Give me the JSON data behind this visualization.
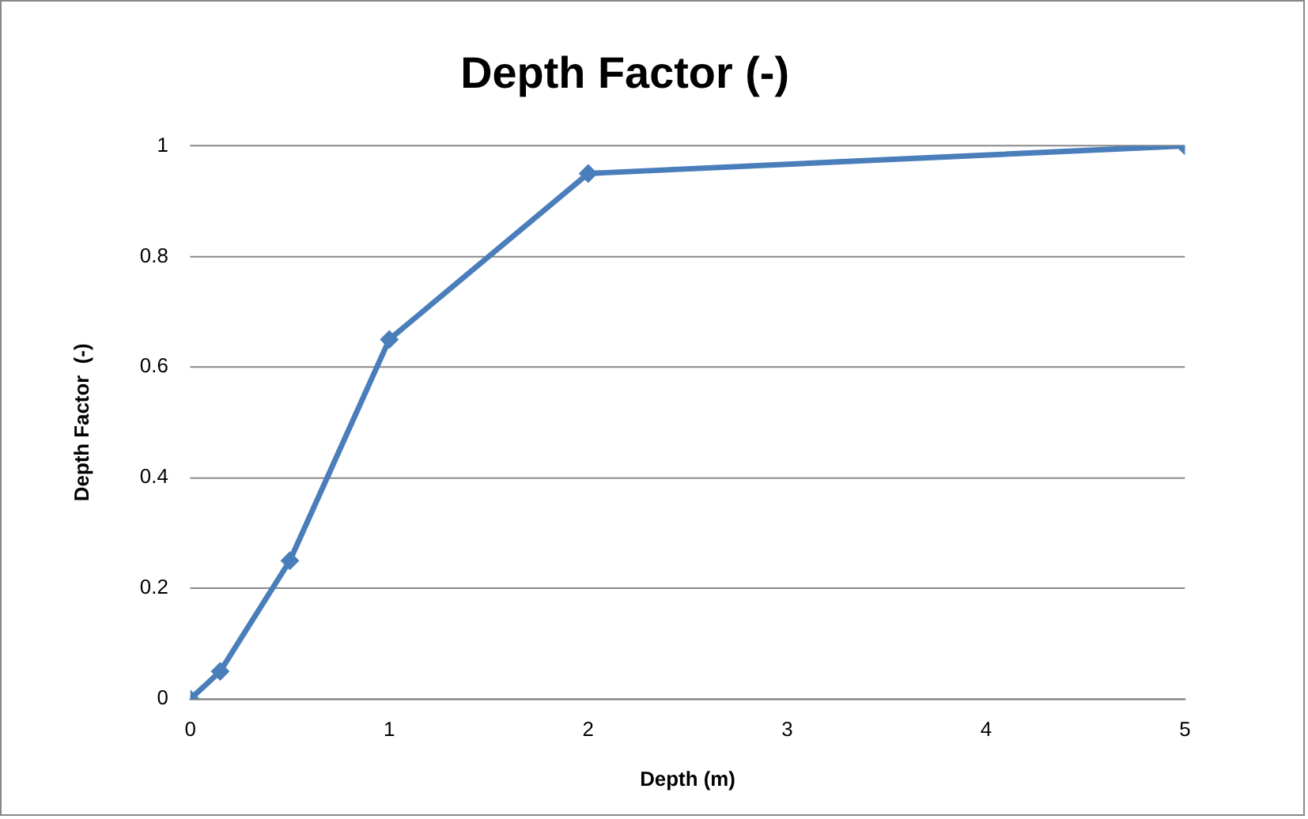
{
  "chart_data": {
    "type": "line",
    "title": "Depth Factor (-)",
    "xlabel": "Depth (m)",
    "ylabel": "Depth Factor  (-)",
    "x": [
      0,
      0.15,
      0.5,
      1,
      2,
      5
    ],
    "series": [
      {
        "color": "#4a7ebb",
        "values": [
          0,
          0.05,
          0.25,
          0.65,
          0.95,
          1
        ]
      }
    ],
    "xlim": [
      0,
      5
    ],
    "xticks": [
      0,
      1,
      2,
      3,
      4,
      5
    ],
    "ylim": [
      0,
      1
    ],
    "yticks": [
      0,
      0.2,
      0.4,
      0.6,
      0.8,
      1
    ],
    "grid": "y",
    "legend": false,
    "marker": "diamond",
    "line_style": "solid"
  }
}
